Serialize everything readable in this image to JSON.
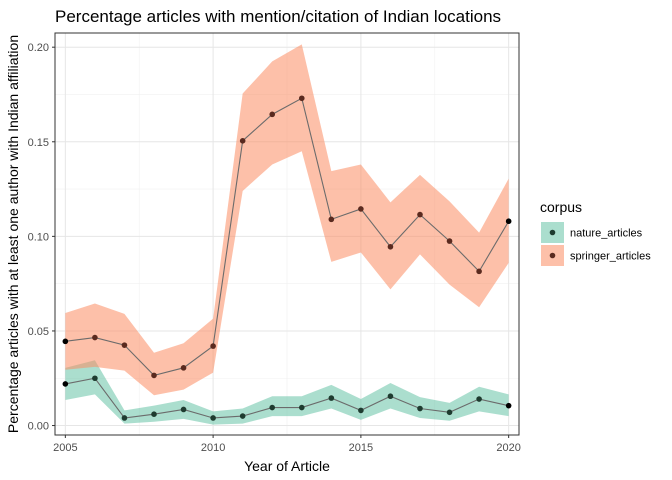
{
  "chart_data": {
    "type": "line",
    "title": "Percentage articles with mention/citation of Indian locations",
    "xlabel": "Year of Article",
    "ylabel": "Percentage articles with at least one author with Indian affiliation",
    "xlim": [
      2004.65,
      2020.35
    ],
    "ylim": [
      -0.005,
      0.2075
    ],
    "x_ticks": [
      2005,
      2010,
      2015,
      2020
    ],
    "x_tick_labels": [
      "2005",
      "2010",
      "2015",
      "2020"
    ],
    "y_ticks": [
      0.0,
      0.05,
      0.1,
      0.15,
      0.2
    ],
    "y_tick_labels": [
      "0.00",
      "0.05",
      "0.10",
      "0.15",
      "0.20"
    ],
    "grid": true,
    "legend": {
      "title": "corpus",
      "position": "right"
    },
    "x": [
      2005,
      2006,
      2007,
      2008,
      2009,
      2010,
      2011,
      2012,
      2013,
      2014,
      2015,
      2016,
      2017,
      2018,
      2019,
      2020
    ],
    "series": [
      {
        "name": "nature_articles",
        "color": "#1b9e77",
        "ribbon_color": "#66c2a5",
        "values": [
          0.022,
          0.025,
          0.004,
          0.006,
          0.0085,
          0.004,
          0.005,
          0.0095,
          0.0095,
          0.0145,
          0.008,
          0.0155,
          0.009,
          0.007,
          0.014,
          0.0105
        ],
        "lower": [
          0.0135,
          0.0165,
          0.001,
          0.002,
          0.0035,
          0.0005,
          0.001,
          0.005,
          0.005,
          0.009,
          0.003,
          0.009,
          0.004,
          0.0025,
          0.0075,
          0.005
        ],
        "upper": [
          0.0305,
          0.0345,
          0.008,
          0.0105,
          0.0135,
          0.0075,
          0.009,
          0.0155,
          0.0155,
          0.0215,
          0.014,
          0.0225,
          0.015,
          0.012,
          0.0205,
          0.0165
        ]
      },
      {
        "name": "springer_articles",
        "color": "#d95f02",
        "ribbon_color": "#fc8d62",
        "values": [
          0.0445,
          0.0465,
          0.0425,
          0.0265,
          0.0305,
          0.042,
          0.1505,
          0.1645,
          0.173,
          0.109,
          0.1145,
          0.0945,
          0.1115,
          0.0975,
          0.0815,
          0.108
        ],
        "lower": [
          0.0295,
          0.031,
          0.029,
          0.016,
          0.019,
          0.028,
          0.124,
          0.138,
          0.145,
          0.0865,
          0.0915,
          0.072,
          0.0905,
          0.0745,
          0.0625,
          0.086
        ],
        "upper": [
          0.0595,
          0.0645,
          0.059,
          0.0385,
          0.0435,
          0.0565,
          0.1755,
          0.1925,
          0.2015,
          0.1345,
          0.138,
          0.118,
          0.1325,
          0.1185,
          0.102,
          0.1305
        ]
      }
    ]
  }
}
